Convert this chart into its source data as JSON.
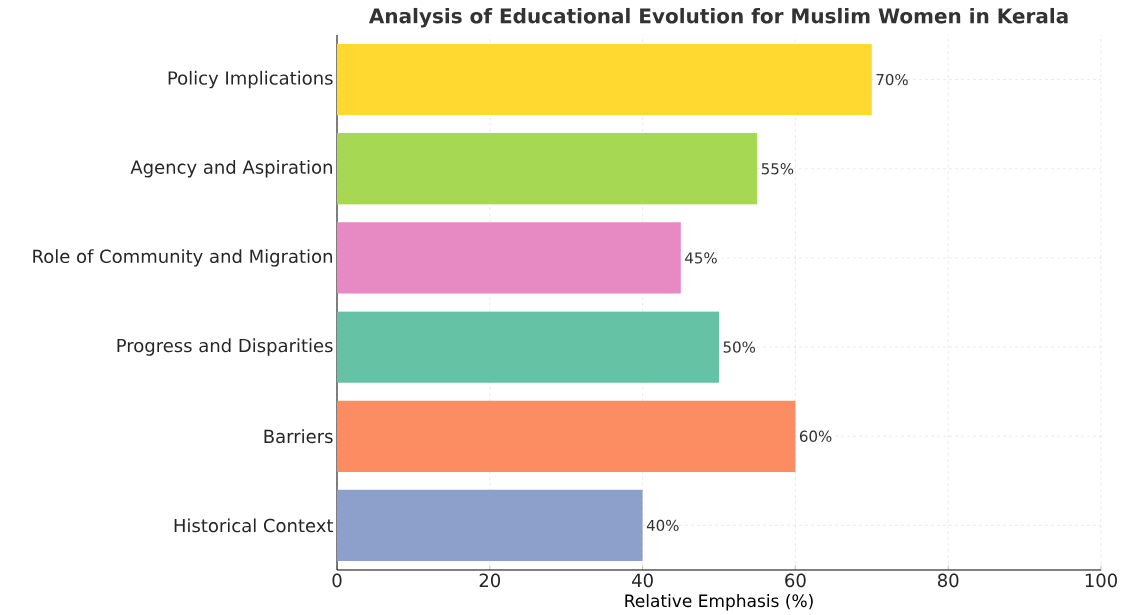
{
  "chart_data": {
    "type": "bar",
    "orientation": "horizontal",
    "title": "Analysis of Educational Evolution for Muslim Women in Kerala",
    "xlabel": "Relative Emphasis (%)",
    "categories": [
      "Policy Implications",
      "Agency and Aspiration",
      "Role of Community and Migration",
      "Progress and Disparities",
      "Barriers",
      "Historical Context"
    ],
    "values": [
      70,
      55,
      45,
      50,
      60,
      40
    ],
    "colors": [
      "#ffd92f",
      "#a6d854",
      "#e78ac3",
      "#66c2a5",
      "#fc8d62",
      "#8da0cb"
    ],
    "value_labels": [
      "70%",
      "55%",
      "45%",
      "50%",
      "60%",
      "40%"
    ],
    "xlim": [
      0,
      100
    ],
    "xticks": [
      0,
      20,
      40,
      60,
      80,
      100
    ],
    "grid": true
  }
}
